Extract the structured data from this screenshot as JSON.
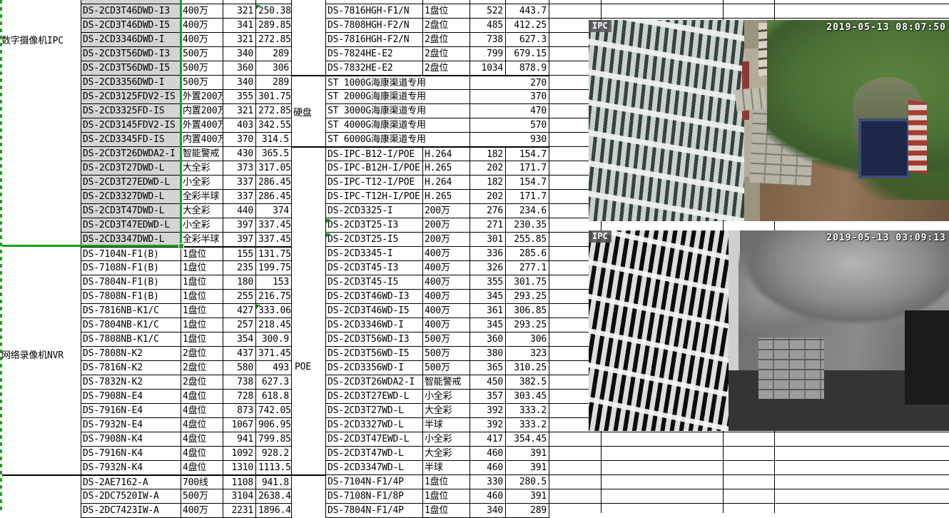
{
  "colors": {
    "selection_green": "#1aa11a",
    "marker_green": "#0c8a0c",
    "selected_cell_gray": "#d4d4d4",
    "gridline": "#000000"
  },
  "left_section": {
    "categories": [
      {
        "label": "数字摄像机IPC"
      },
      {
        "label": "网络录像机NVR"
      }
    ],
    "partial_top_row": [
      "",
      "",
      "",
      ""
    ],
    "groups": [
      {
        "name": "ipc-cameras",
        "highlight": true,
        "rows": [
          [
            "DS-2CD3T46DWD-I3",
            "400万",
            "321",
            "250.38"
          ],
          [
            "DS-2CD3T46DWD-I5",
            "400万",
            "341",
            "289.85"
          ],
          [
            "DS-2CD3346DWD-I",
            "400万",
            "321",
            "272.85"
          ],
          [
            "DS-2CD3T56DWD-I3",
            "500万",
            "340",
            "289"
          ],
          [
            "DS-2CD3T56DWD-I5",
            "500万",
            "360",
            "306"
          ],
          [
            "DS-2CD3356DWD-I",
            "500万",
            "340",
            "289"
          ],
          [
            "DS-2CD3125FDV2-IS",
            "外置200万",
            "355",
            "301.75"
          ],
          [
            "DS-2CD3325FD-IS",
            "内置200万",
            "321",
            "272.85"
          ],
          [
            "DS-2CD3145FDV2-IS",
            "外置400万",
            "403",
            "342.55"
          ],
          [
            "DS-2CD3345FD-IS",
            "内置400万",
            "370",
            "314.5"
          ],
          [
            "DS-2CD3T26DWDA2-I",
            "智能警戒",
            "430",
            "365.5"
          ],
          [
            "DS-2CD3T27DWD-L",
            "大全彩",
            "373",
            "317.05"
          ],
          [
            "DS-2CD3T27EDWD-L",
            "小全彩",
            "337",
            "286.45"
          ],
          [
            "DS-2CD3327DWD-L",
            "全彩半球",
            "337",
            "286.45"
          ],
          [
            "DS-2CD3T47DWD-L",
            "大全彩",
            "440",
            "374"
          ],
          [
            "DS-2CD3T47EDWD-L",
            "小全彩",
            "397",
            "337.45"
          ],
          [
            "DS-2CD3347DWD-L",
            "全彩半球",
            "397",
            "337.45"
          ]
        ]
      },
      {
        "name": "nvr-recorders",
        "highlight": false,
        "rows": [
          [
            "DS-7104N-F1(B)",
            "1盘位",
            "155",
            "131.75"
          ],
          [
            "DS-7108N-F1(B)",
            "1盘位",
            "235",
            "199.75"
          ],
          [
            "DS-7804N-F1(B)",
            "1盘位",
            "180",
            "153"
          ],
          [
            "DS-7808N-F1(B)",
            "1盘位",
            "255",
            "216.75"
          ],
          [
            "DS-7816NB-K1/C",
            "1盘位",
            "427",
            "333.06"
          ],
          [
            "DS-7804NB-K1/C",
            "1盘位",
            "257",
            "218.45"
          ],
          [
            "DS-7808NB-K1/C",
            "1盘位",
            "354",
            "300.9"
          ],
          [
            "DS-7808N-K2",
            "2盘位",
            "437",
            "371.45"
          ],
          [
            "DS-7816N-K2",
            "2盘位",
            "580",
            "493"
          ],
          [
            "DS-7832N-K2",
            "2盘位",
            "738",
            "627.3"
          ],
          [
            "DS-7908N-E4",
            "4盘位",
            "728",
            "618.8"
          ],
          [
            "DS-7916N-E4",
            "4盘位",
            "873",
            "742.05"
          ],
          [
            "DS-7932N-E4",
            "4盘位",
            "1067",
            "906.95"
          ],
          [
            "DS-7908N-K4",
            "4盘位",
            "941",
            "799.85"
          ],
          [
            "DS-7916N-K4",
            "4盘位",
            "1092",
            "928.2"
          ],
          [
            "DS-7932N-K4",
            "4盘位",
            "1310",
            "1113.5"
          ]
        ]
      },
      {
        "name": "analog-ptz",
        "highlight": false,
        "rows": [
          [
            "DS-2AE7162-A",
            "700线",
            "1108",
            "941.8"
          ],
          [
            "DS-2DC7520IW-A",
            "500万",
            "3104",
            "2638.4"
          ],
          [
            "DS-2DC7423IW-A",
            "400万",
            "2231",
            "1896.4"
          ]
        ]
      }
    ]
  },
  "side_labels": [
    {
      "label": "硬盘"
    },
    {
      "label": "POE"
    }
  ],
  "middle_section": {
    "partial_top_row": [
      "",
      "1盘位",
      "",
      ""
    ],
    "groups": [
      {
        "name": "hgh-dvrs",
        "highlight": false,
        "rows": [
          [
            "DS-7816HGH-F1/N",
            "1盘位",
            "522",
            "443.7"
          ],
          [
            "DS-7808HGH-F2/N",
            "2盘位",
            "485",
            "412.25"
          ],
          [
            "DS-7816HGH-F2/N",
            "2盘位",
            "738",
            "627.3"
          ],
          [
            "DS-7824HE-E2",
            "2盘位",
            "799",
            "679.15"
          ],
          [
            "DS-7832HE-E2",
            "2盘位",
            "1034",
            "878.9"
          ]
        ]
      },
      {
        "name": "hard-disks",
        "highlight": false,
        "rows": [
          [
            "ST 1000G海康渠道专用",
            "270"
          ],
          [
            "ST 2000G海康渠道专用",
            "370"
          ],
          [
            "ST 3000G海康渠道专用",
            "470"
          ],
          [
            "ST 4000G海康渠道专用",
            "570"
          ],
          [
            "ST 6000G海康渠道专用",
            "930"
          ]
        ]
      },
      {
        "name": "poe-cameras",
        "highlight": false,
        "rows": [
          [
            "DS-IPC-B12-I/POE",
            "H.264",
            "182",
            "154.7"
          ],
          [
            "DS-IPC-B12H-I/POE",
            "H.265",
            "202",
            "171.7"
          ],
          [
            "DS-IPC-T12-I/POE",
            "H.264",
            "182",
            "154.7"
          ],
          [
            "DS-IPC-T12H-I/POE",
            "H.265",
            "202",
            "171.7"
          ],
          [
            "DS-2CD3325-I",
            "200万",
            "276",
            "234.6"
          ],
          [
            "DS-2CD3T25-I3",
            "200万",
            "271",
            "230.35"
          ],
          [
            "DS-2CD3T25-I5",
            "200万",
            "301",
            "255.85"
          ],
          [
            "DS-2CD3345-I",
            "400万",
            "336",
            "285.6"
          ],
          [
            "DS-2CD3T45-I3",
            "400万",
            "326",
            "277.1"
          ],
          [
            "DS-2CD3T45-I5",
            "400万",
            "355",
            "301.75"
          ],
          [
            "DS-2CD3T46WD-I3",
            "400万",
            "345",
            "293.25"
          ],
          [
            "DS-2CD3T46WD-I5",
            "400万",
            "361",
            "306.85"
          ],
          [
            "DS-2CD3346WD-I",
            "400万",
            "345",
            "293.25"
          ],
          [
            "DS-2CD3T56WD-I3",
            "500万",
            "360",
            "306"
          ],
          [
            "DS-2CD3T56WD-I5",
            "500万",
            "380",
            "323"
          ],
          [
            "DS-2CD3356WD-I",
            "500万",
            "365",
            "310.25"
          ],
          [
            "DS-2CD3T26WDA2-I",
            "智能警戒",
            "450",
            "382.5"
          ],
          [
            "DS-2CD3T27EWD-L",
            "小全彩",
            "357",
            "303.45"
          ],
          [
            "DS-2CD3T27WD-L",
            "大全彩",
            "392",
            "333.2"
          ],
          [
            "DS-2CD3327WD-L",
            "半球",
            "392",
            "333.2"
          ],
          [
            "DS-2CD3T47EWD-L",
            "小全彩",
            "417",
            "354.45"
          ],
          [
            "DS-2CD3T47WD-L",
            "大全彩",
            "460",
            "391"
          ],
          [
            "DS-2CD3347WD-L",
            "半球",
            "460",
            "391"
          ],
          [
            "DS-7104N-F1/4P",
            "1盘位",
            "330",
            "280.5"
          ],
          [
            "DS-7108N-F1/8P",
            "1盘位",
            "460",
            "391"
          ],
          [
            "DS-7804N-F1/4P",
            "1盘位",
            "340",
            "289"
          ]
        ]
      }
    ]
  },
  "feeds": [
    {
      "label": "IPC",
      "timestamp": "2019-05-13 08:07:50",
      "mode": "color"
    },
    {
      "label": "IPC",
      "timestamp": "2019-05-13 03:09:13",
      "mode": "infrared"
    }
  ]
}
